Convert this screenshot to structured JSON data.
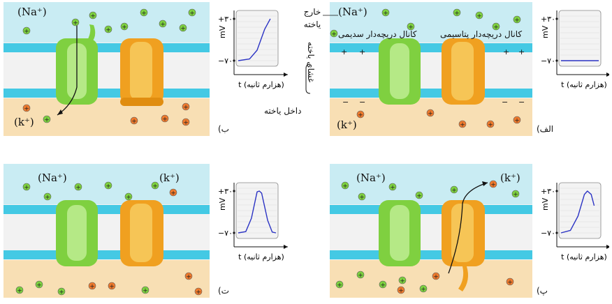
{
  "panels": {
    "alef": {
      "letter": "الف)",
      "na_label": "(Na⁺)",
      "k_label": "(k⁺)",
      "outside_label": "خارج یاخته",
      "inside_label": "داخل یاخته",
      "membrane_label": "غشای یاخته",
      "k_channel_label": "کانال دریچه‌دار پتاسیمی",
      "na_channel_label": "کانال دریچه‌دار سدیمی",
      "graph": {
        "y_unit": "mV",
        "y_top_tick": "+۳۰",
        "y_bottom_tick": "−۷۰",
        "x_label": "t (هزارم ثانیه)",
        "points": [
          [
            0,
            -70
          ],
          [
            1,
            -70
          ]
        ]
      }
    },
    "be": {
      "letter": "ب)",
      "na_label": "(Na⁺)",
      "k_label": "(k⁺)",
      "graph": {
        "y_unit": "mV",
        "y_top_tick": "+۳۰",
        "y_bottom_tick": "−۷۰",
        "x_label": "t (هزارم ثانیه)",
        "points": [
          [
            0,
            -70
          ],
          [
            0.3,
            -66
          ],
          [
            0.5,
            -45
          ],
          [
            0.7,
            5
          ],
          [
            0.85,
            30
          ]
        ]
      }
    },
    "pe": {
      "letter": "پ)",
      "na_label": "(Na⁺)",
      "k_label": "(k⁺)",
      "graph": {
        "y_unit": "mV",
        "y_top_tick": "+۳۰",
        "y_bottom_tick": "−۷۰",
        "x_label": "t (هزارم ثانیه)",
        "points": [
          [
            0,
            -70
          ],
          [
            0.25,
            -64
          ],
          [
            0.45,
            -30
          ],
          [
            0.62,
            22
          ],
          [
            0.7,
            30
          ],
          [
            0.8,
            22
          ],
          [
            0.88,
            -5
          ]
        ]
      }
    },
    "te": {
      "letter": "ت)",
      "na_label": "(Na⁺)",
      "k_label": "(k⁺)",
      "graph": {
        "y_unit": "mV",
        "y_top_tick": "+۳۰",
        "y_bottom_tick": "−۷۰",
        "x_label": "t (هزارم ثانیه)",
        "points": [
          [
            0,
            -70
          ],
          [
            0.2,
            -67
          ],
          [
            0.35,
            -35
          ],
          [
            0.5,
            28
          ],
          [
            0.56,
            30
          ],
          [
            0.62,
            25
          ],
          [
            0.78,
            -40
          ],
          [
            0.9,
            -68
          ],
          [
            1,
            -70
          ]
        ]
      }
    }
  },
  "colors": {
    "outside": "#c9ecf3",
    "inside": "#f8dfb4",
    "lipid_head": "#44c9e4",
    "na_ion": "#7dd23f",
    "k_ion": "#f07a2c",
    "na_channel": "#7fd040",
    "k_channel": "#f0a020",
    "curve": "#2b33c4"
  }
}
